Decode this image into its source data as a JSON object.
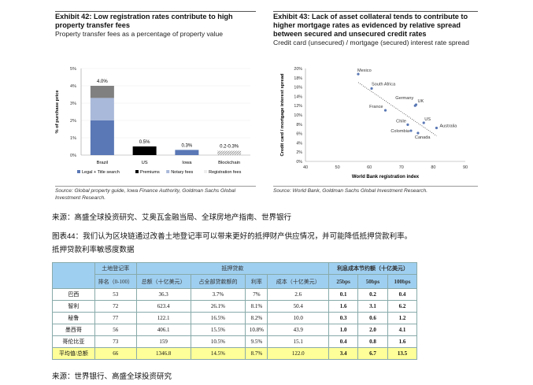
{
  "exhibit42": {
    "title": "Exhibit 42: Low registration rates contribute to high property transfer fees",
    "subtitle": "Property transfer fees as a percentage of property value",
    "source": "Source: Global property guide, Iowa Finance Authority, Goldman Sachs Global Investment Research."
  },
  "exhibit43": {
    "title": "Exhibit 43: Lack of asset collateral tends to contribute to higher mortgage rates as evidenced by relative spread between secured and unsecured credit rates",
    "subtitle": "Credit card (unsecured) / mortgage (secured) interest rate spread",
    "source": "Source: World Bank, Goldman Sachs Global Investment Research."
  },
  "chart_data": [
    {
      "type": "bar",
      "stacked": true,
      "categories": [
        "Brazil",
        "US",
        "Iowa",
        "Blockchain"
      ],
      "series": [
        {
          "name": "Legal + Title search",
          "color": "#5a78b5",
          "values": [
            2.0,
            0,
            0.3,
            0
          ]
        },
        {
          "name": "Premiums",
          "color": "#000000",
          "values": [
            0,
            0.5,
            0,
            0
          ]
        },
        {
          "name": "Notary fees",
          "color": "#a9b9d9",
          "values": [
            1.3,
            0,
            0,
            0
          ]
        },
        {
          "name": "Registration fees",
          "color": "#808080",
          "values": [
            0.7,
            0,
            0,
            0.25
          ]
        }
      ],
      "data_labels": [
        "4.0%",
        "0.5%",
        "0.3%",
        "0.2-0.3%"
      ],
      "ylabel": "% of purchase price",
      "yticks": [
        "0%",
        "1%",
        "2%",
        "3%",
        "4%",
        "5%"
      ],
      "ylim": [
        0,
        5
      ],
      "legend": "bottom"
    },
    {
      "type": "scatter",
      "xlabel": "World Bank registration index",
      "ylabel": "Credit card / mortgage interest spread",
      "xlim": [
        40,
        90
      ],
      "ylim": [
        0,
        20
      ],
      "xticks": [
        "40",
        "50",
        "60",
        "70",
        "80",
        "90"
      ],
      "yticks": [
        "0%",
        "2%",
        "4%",
        "6%",
        "8%",
        "10%",
        "12%",
        "14%",
        "16%",
        "18%",
        "20%"
      ],
      "points": [
        {
          "label": "Mexico",
          "x": 56.5,
          "y": 18.8
        },
        {
          "label": "South Africa",
          "x": 60.7,
          "y": 15.7
        },
        {
          "label": "Germany",
          "x": 74.3,
          "y": 12.0
        },
        {
          "label": "UK",
          "x": 74.6,
          "y": 12.2
        },
        {
          "label": "France",
          "x": 65,
          "y": 11.0
        },
        {
          "label": "Chile",
          "x": 72,
          "y": 7.9
        },
        {
          "label": "US",
          "x": 77,
          "y": 8.3
        },
        {
          "label": "Australia",
          "x": 81,
          "y": 7.2
        },
        {
          "label": "Colombia",
          "x": 73,
          "y": 6.6
        },
        {
          "label": "Canada",
          "x": 75.2,
          "y": 6.1
        }
      ],
      "trendline": {
        "x": [
          56.5,
          81
        ],
        "y": [
          17.0,
          5.5
        ]
      }
    }
  ],
  "source_line": "来源：高盛全球投资研究、艾奥瓦金融当局、全球房地产指南、世界银行",
  "figure44": {
    "title": "图表44：我们认为区块链通过改善土地登记率可以带来更好的抵押财产供应情况，并可能降低抵押贷款利率。",
    "subtitle": "抵押贷款利率敏感度数据"
  },
  "table": {
    "header1": [
      "",
      "土地登记率",
      "抵押贷款",
      "利息成本节约额（十亿美元）"
    ],
    "header2": [
      "排名（0-100）",
      "总额（十亿美元）",
      "占全部贷款额的",
      "利率",
      "成本（十亿美元）",
      "25bps",
      "50bps",
      "100bps"
    ],
    "rows": [
      [
        "巴西",
        "53",
        "36.3",
        "3.7%",
        "7%",
        "2.6",
        "0.1",
        "0.2",
        "0.4"
      ],
      [
        "智利",
        "72",
        "623.4",
        "26.1%",
        "8.1%",
        "50.4",
        "1.6",
        "3.1",
        "6.2"
      ],
      [
        "秘鲁",
        "77",
        "122.1",
        "16.5%",
        "8.2%",
        "10.0",
        "0.3",
        "0.6",
        "1.2"
      ],
      [
        "墨西哥",
        "56",
        "406.1",
        "15.5%",
        "10.8%",
        "43.9",
        "1.0",
        "2.0",
        "4.1"
      ],
      [
        "哥伦比亚",
        "73",
        "159",
        "10.5%",
        "9.5%",
        "15.1",
        "0.4",
        "0.8",
        "1.6"
      ],
      [
        "平均值/总额",
        "66",
        "1346.8",
        "14.5%",
        "8.7%",
        "122.0",
        "3.4",
        "6.7",
        "13.5"
      ]
    ]
  },
  "footer_source": "来源：世界银行、高盛全球投资研究"
}
